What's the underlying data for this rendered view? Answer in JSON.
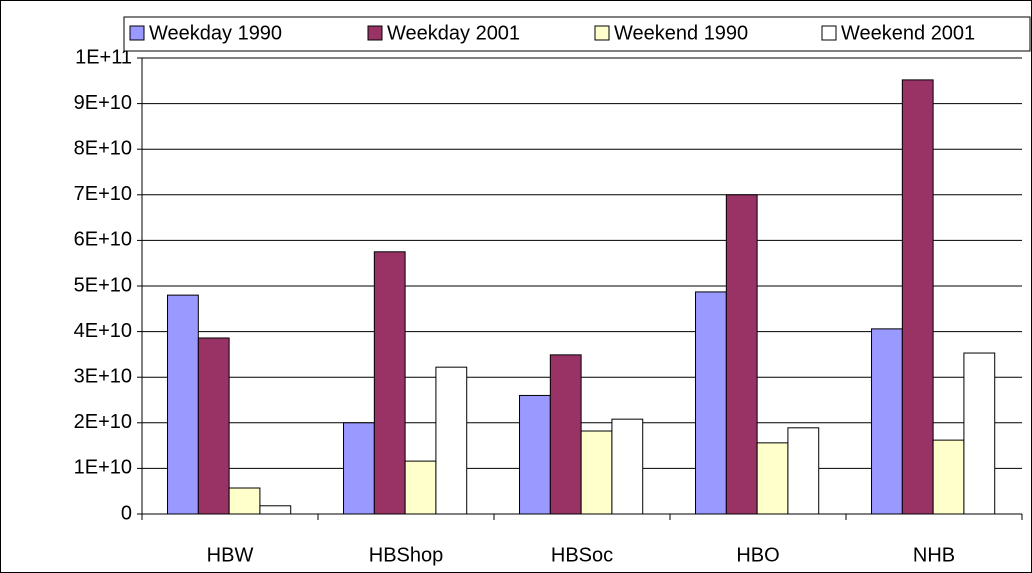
{
  "chart_data": {
    "type": "bar",
    "categories": [
      "HBW",
      "HBShop",
      "HBSoc",
      "HBO",
      "NHB"
    ],
    "series": [
      {
        "name": "Weekday 1990",
        "color": "#9999ff",
        "values": [
          48000000000,
          20000000000,
          26000000000,
          48700000000,
          40600000000
        ]
      },
      {
        "name": "Weekday 2001",
        "color": "#993366",
        "values": [
          38600000000,
          57500000000,
          34900000000,
          70000000000,
          95200000000
        ]
      },
      {
        "name": "Weekend 1990",
        "color": "#ffffcc",
        "values": [
          5700000000,
          11600000000,
          18200000000,
          15600000000,
          16200000000
        ]
      },
      {
        "name": "Weekend 2001",
        "color": "#ffffff",
        "values": [
          1800000000,
          32200000000,
          20800000000,
          18900000000,
          35300000000
        ]
      }
    ],
    "ylim": [
      0,
      100000000000
    ],
    "yticks": [
      0,
      {
        "value": 10000000000,
        "label": "1E+10"
      },
      {
        "value": 20000000000,
        "label": "2E+10"
      },
      {
        "value": 30000000000,
        "label": "3E+10"
      },
      {
        "value": 40000000000,
        "label": "4E+10"
      },
      {
        "value": 50000000000,
        "label": "5E+10"
      },
      {
        "value": 60000000000,
        "label": "6E+10"
      },
      {
        "value": 70000000000,
        "label": "7E+10"
      },
      {
        "value": 80000000000,
        "label": "8E+10"
      },
      {
        "value": 90000000000,
        "label": "9E+10"
      },
      {
        "value": 100000000000,
        "label": "1E+11"
      }
    ],
    "grid": true,
    "legend": "top"
  }
}
